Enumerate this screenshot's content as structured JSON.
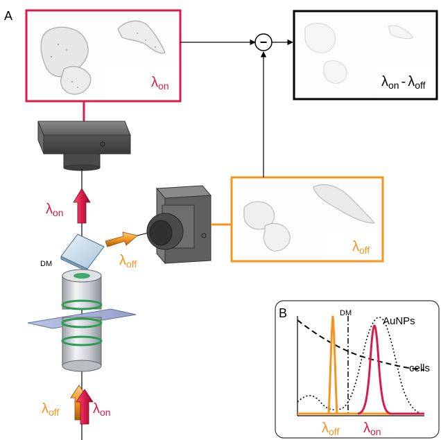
{
  "panel_a": {
    "label": "A"
  },
  "panel_b": {
    "label": "B"
  },
  "colors": {
    "on": "#d81b4a",
    "off": "#f7941d",
    "black": "#000000"
  },
  "lambda": "λ",
  "sub_on": "on",
  "sub_off": "off",
  "minus_sign": "-",
  "subtract_op": "−",
  "dm_label": "DM",
  "graph": {
    "dm_label": "DM",
    "aunps_label": "AuNPs",
    "cells_label": "cells"
  },
  "icons": [
    "camera-icon",
    "objective-lens-icon",
    "dichroic-mirror-icon",
    "slide-icon",
    "arrow-icon"
  ]
}
